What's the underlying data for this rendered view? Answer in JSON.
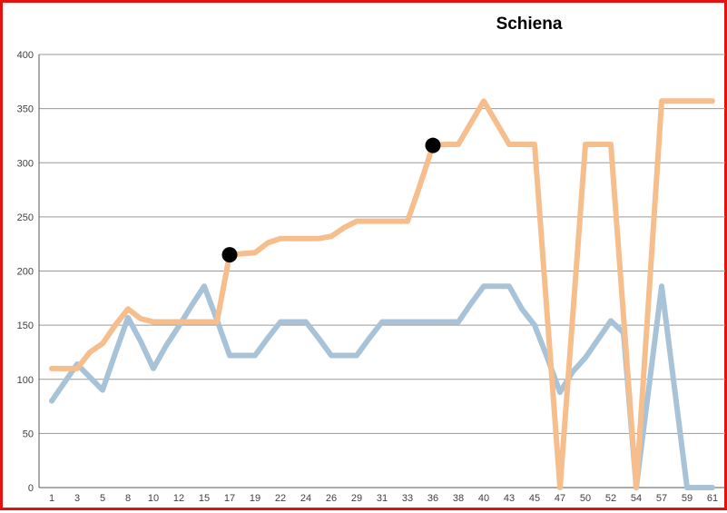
{
  "frame": {
    "border_color": "#e3120f",
    "background": "#ffffff"
  },
  "chart_data": {
    "type": "line",
    "title": "Schiena",
    "legend": false,
    "grid": true,
    "ylim": [
      0,
      400
    ],
    "y_ticks": [
      400,
      350,
      300,
      250,
      200,
      150,
      100,
      50,
      0
    ],
    "x_tick_labels": [
      "1",
      "3",
      "5",
      "8",
      "10",
      "12",
      "15",
      "17",
      "19",
      "22",
      "24",
      "26",
      "29",
      "31",
      "33",
      "36",
      "38",
      "40",
      "43",
      "45",
      "47",
      "50",
      "52",
      "54",
      "57",
      "59",
      "61"
    ],
    "categories": [
      1,
      2,
      3,
      4,
      5,
      6,
      8,
      9,
      10,
      11,
      12,
      13,
      15,
      16,
      17,
      18,
      19,
      20,
      22,
      23,
      24,
      25,
      26,
      27,
      29,
      30,
      31,
      32,
      33,
      34,
      36,
      37,
      38,
      39,
      40,
      41,
      43,
      44,
      45,
      46,
      47,
      48,
      50,
      51,
      52,
      53,
      54,
      55,
      57,
      58,
      59,
      60,
      61
    ],
    "series": [
      {
        "id": "blue-series",
        "color": "#a8c3d8",
        "values": [
          80,
          97,
          114,
          102,
          90,
          124,
          157,
          135,
          110,
          131,
          149,
          168,
          186,
          155,
          122,
          122,
          122,
          138,
          153,
          153,
          153,
          138,
          122,
          122,
          122,
          138,
          153,
          153,
          153,
          153,
          153,
          153,
          153,
          170,
          186,
          186,
          186,
          165,
          150,
          120,
          88,
          107,
          120,
          137,
          154,
          143,
          0,
          93,
          186,
          93,
          0,
          0,
          0
        ]
      },
      {
        "id": "orange-series",
        "color": "#f5be8c",
        "values": [
          110,
          110,
          110,
          125,
          133,
          150,
          165,
          156,
          153,
          153,
          153,
          153,
          153,
          153,
          215,
          216,
          217,
          226,
          230,
          230,
          230,
          230,
          232,
          240,
          246,
          246,
          246,
          246,
          246,
          280,
          316,
          317,
          317,
          337,
          357,
          337,
          317,
          317,
          317,
          158,
          0,
          158,
          317,
          317,
          317,
          158,
          0,
          178,
          357,
          357,
          357,
          357,
          357
        ]
      }
    ],
    "markers": [
      {
        "series": "orange-series",
        "index": 14,
        "category_label": "17",
        "value": 215,
        "color": "#000000"
      },
      {
        "series": "orange-series",
        "index": 30,
        "category_label": "36",
        "value": 316,
        "color": "#000000"
      }
    ],
    "colors": {
      "gridline": "#9a9a9a",
      "axis_line": "#595959",
      "tick_label": "#3f3f3f"
    }
  }
}
